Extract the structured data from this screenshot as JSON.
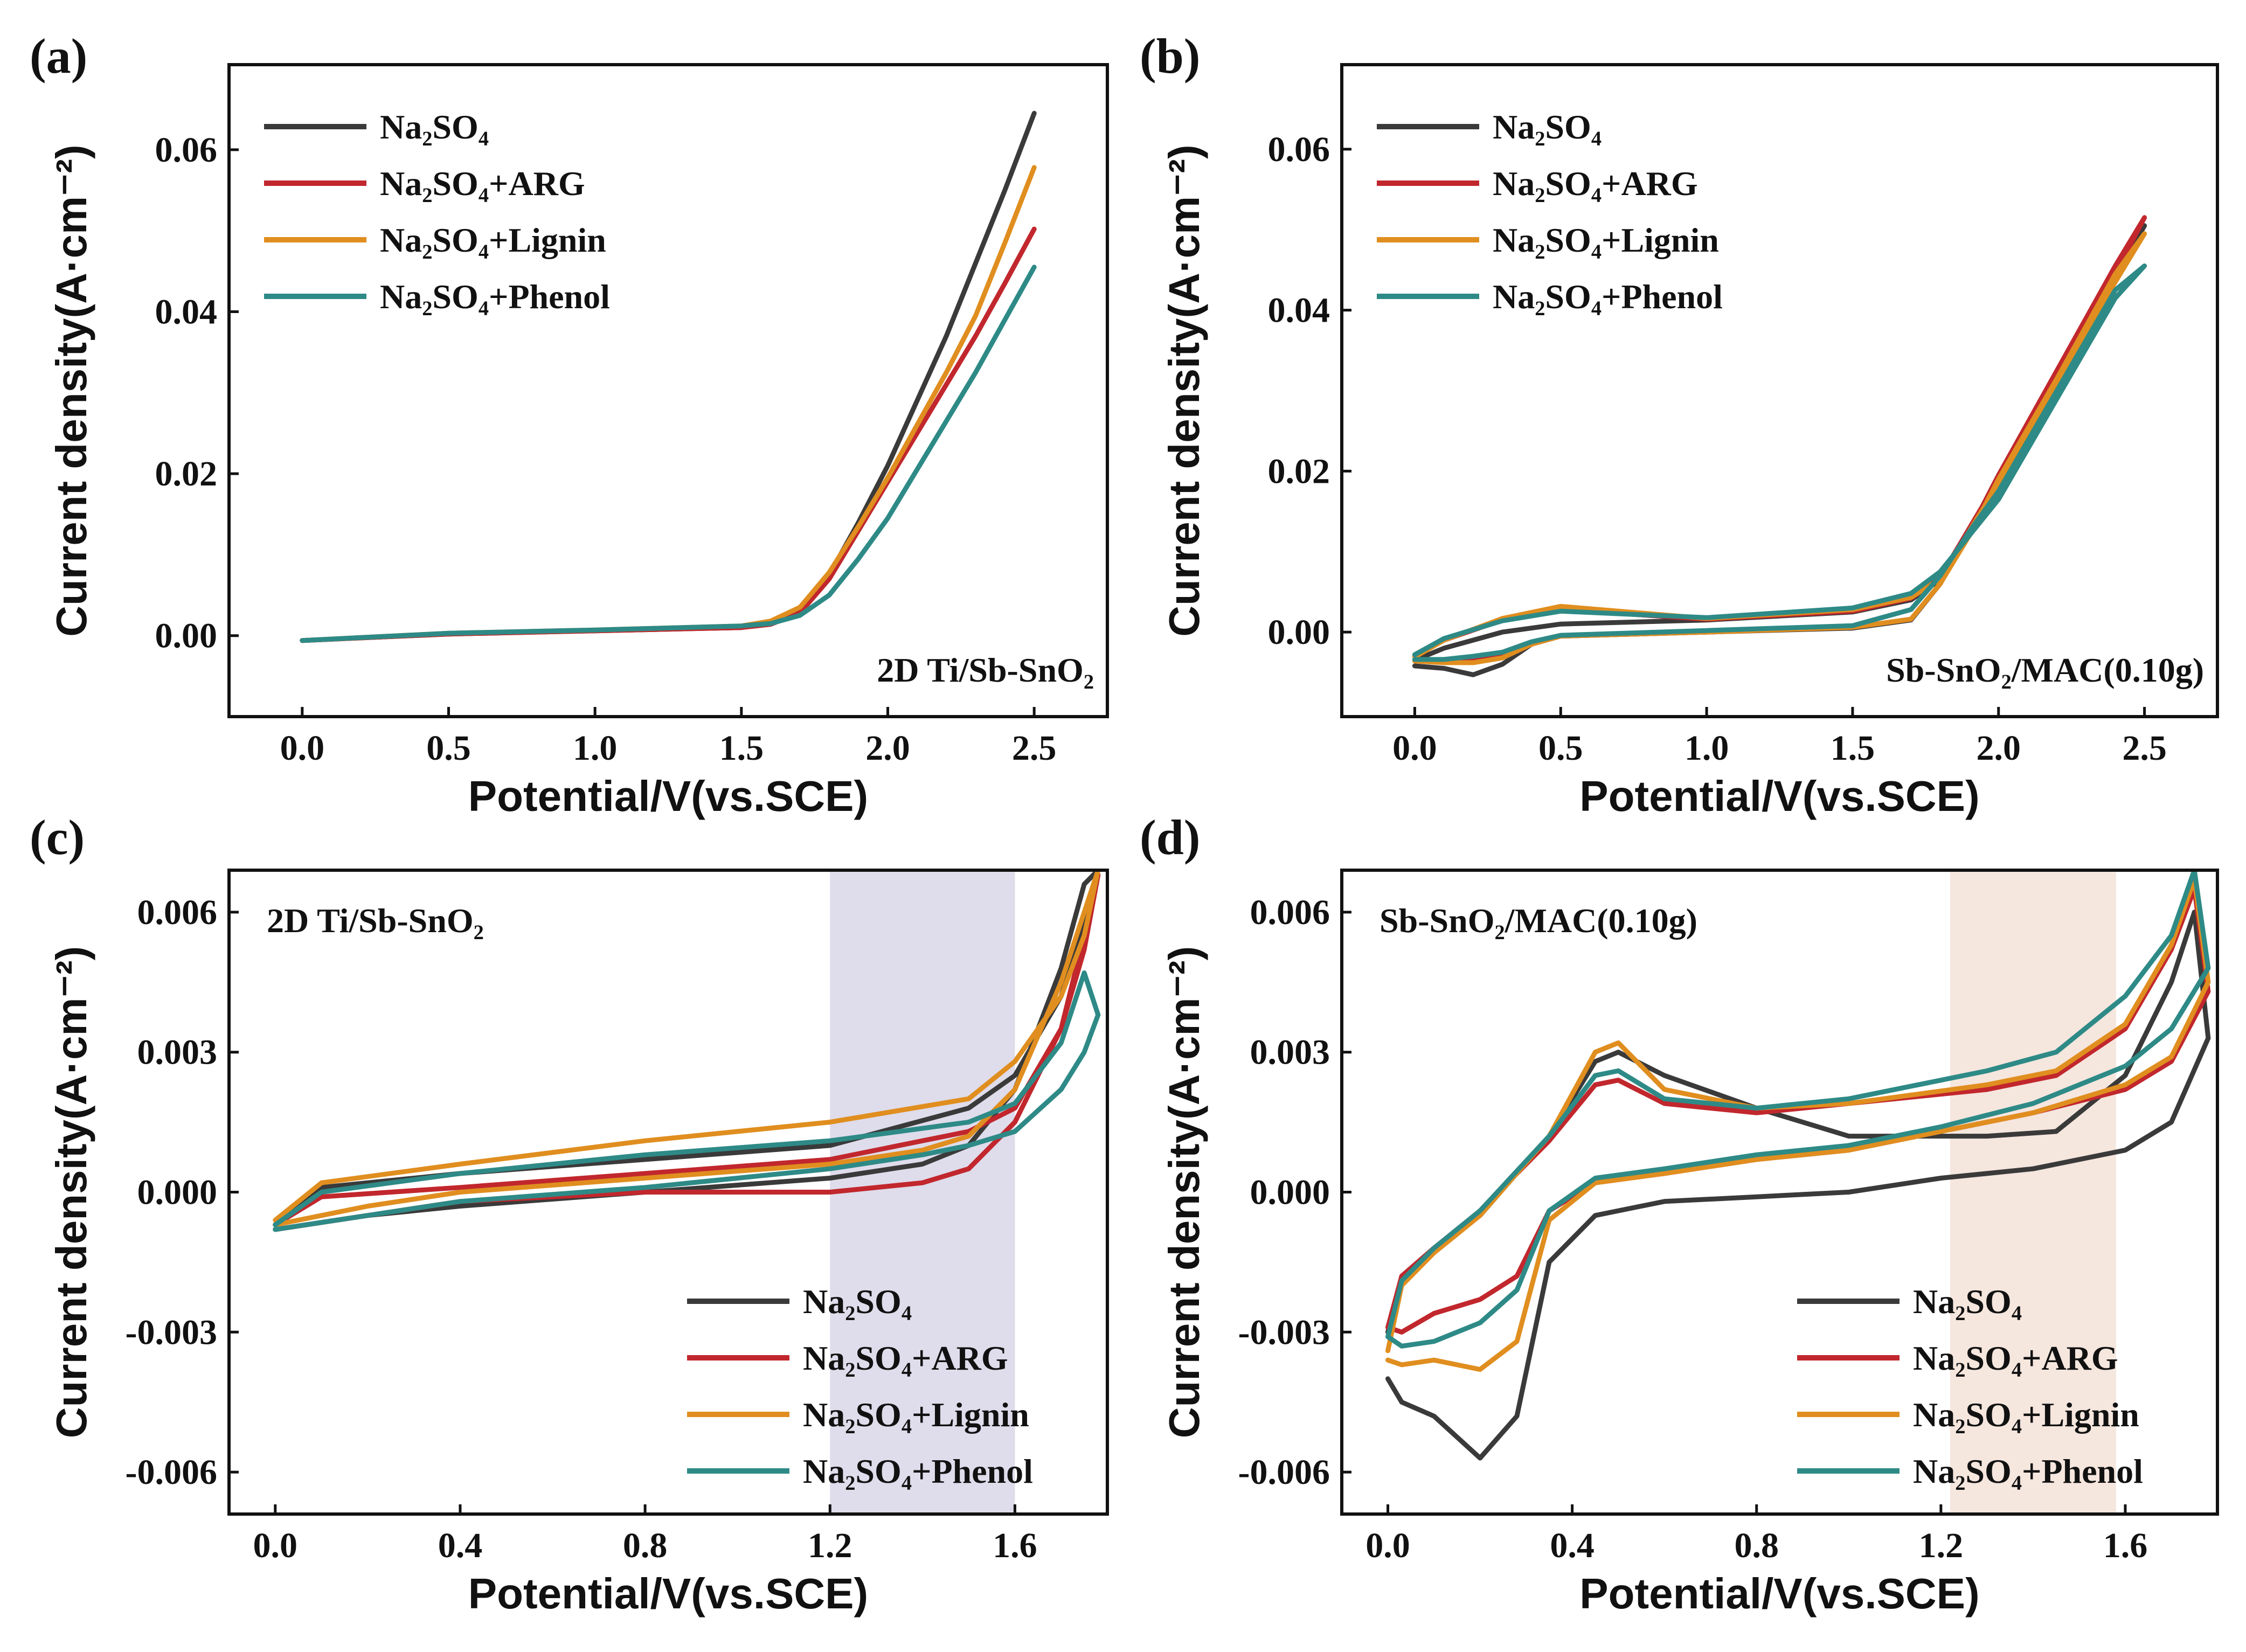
{
  "colors": {
    "Na2SO4": "#3a3a3a",
    "ARG": "#c1272d",
    "Lignin": "#e08e1f",
    "Phenol": "#2e8a86",
    "band_c": "#d9d6e8",
    "band_d": "#f3e2d8"
  },
  "legend": {
    "s1": "Na₂SO₄",
    "s2": "Na₂SO₄+ARG",
    "s3": "Na₂SO₄+Lignin",
    "s4": "Na₂SO₄+Phenol"
  },
  "chart_data": [
    {
      "id": "a",
      "panel_label": "(a)",
      "type": "line",
      "annotation": "2D Ti/Sb-SnO₂",
      "annotation_position": "bottom-right",
      "legend_position": "top-left",
      "xlabel": "Potential/V(vs.SCE)",
      "ylabel": "Current density(A·cm⁻²)",
      "xlim": [
        -0.25,
        2.75
      ],
      "ylim": [
        -0.01,
        0.0705
      ],
      "xticks": [
        0.0,
        0.5,
        1.0,
        1.5,
        2.0,
        2.5
      ],
      "xtick_labels": [
        "0.0",
        "0.5",
        "1.0",
        "1.5",
        "2.0",
        "2.5"
      ],
      "yticks": [
        0.0,
        0.02,
        0.04,
        0.06
      ],
      "ytick_labels": [
        "0.00",
        "0.02",
        "0.04",
        "0.06"
      ],
      "series": [
        {
          "name": "Na₂SO₄",
          "key": "Na2SO4",
          "x": [
            0.0,
            0.5,
            1.0,
            1.5,
            1.6,
            1.7,
            1.8,
            1.9,
            2.0,
            2.1,
            2.2,
            2.3,
            2.4,
            2.5
          ],
          "y": [
            -0.0006,
            0.0002,
            0.0006,
            0.001,
            0.0015,
            0.003,
            0.0075,
            0.014,
            0.021,
            0.029,
            0.037,
            0.046,
            0.055,
            0.0645
          ]
        },
        {
          "name": "Na₂SO₄+ARG",
          "key": "ARG",
          "x": [
            0.0,
            0.5,
            1.0,
            1.5,
            1.6,
            1.7,
            1.8,
            1.9,
            2.0,
            2.1,
            2.2,
            2.3,
            2.4,
            2.5
          ],
          "y": [
            -0.0006,
            0.0002,
            0.0006,
            0.001,
            0.0014,
            0.0028,
            0.007,
            0.013,
            0.019,
            0.025,
            0.031,
            0.037,
            0.0435,
            0.0502
          ]
        },
        {
          "name": "Na₂SO₄+Lignin",
          "key": "Lignin",
          "x": [
            0.0,
            0.5,
            1.0,
            1.5,
            1.6,
            1.7,
            1.8,
            1.9,
            2.0,
            2.1,
            2.2,
            2.3,
            2.4,
            2.5
          ],
          "y": [
            -0.0006,
            0.0003,
            0.0007,
            0.0012,
            0.0018,
            0.0035,
            0.0078,
            0.0135,
            0.0195,
            0.026,
            0.0325,
            0.0395,
            0.0485,
            0.0578
          ]
        },
        {
          "name": "Na₂SO₄+Phenol",
          "key": "Phenol",
          "x": [
            0.0,
            0.5,
            1.0,
            1.5,
            1.6,
            1.7,
            1.8,
            1.9,
            2.0,
            2.1,
            2.2,
            2.3,
            2.4,
            2.5
          ],
          "y": [
            -0.0006,
            0.0003,
            0.0007,
            0.0012,
            0.0015,
            0.0025,
            0.005,
            0.0095,
            0.0145,
            0.0205,
            0.0265,
            0.0325,
            0.039,
            0.0455
          ]
        }
      ]
    },
    {
      "id": "b",
      "panel_label": "(b)",
      "type": "line",
      "annotation": "Sb-SnO₂/MAC(0.10g)",
      "annotation_position": "bottom-right",
      "legend_position": "top-left",
      "xlabel": "Potential/V(vs.SCE)",
      "ylabel": "Current density(A·cm⁻²)",
      "xlim": [
        -0.25,
        2.75
      ],
      "ylim": [
        -0.0105,
        0.0705
      ],
      "xticks": [
        0.0,
        0.5,
        1.0,
        1.5,
        2.0,
        2.5
      ],
      "xtick_labels": [
        "0.0",
        "0.5",
        "1.0",
        "1.5",
        "2.0",
        "2.5"
      ],
      "yticks": [
        0.0,
        0.02,
        0.04,
        0.06
      ],
      "ytick_labels": [
        "0.00",
        "0.02",
        "0.04",
        "0.06"
      ],
      "series": [
        {
          "name": "Na₂SO₄",
          "key": "Na2SO4",
          "x": [
            0.0,
            0.1,
            0.2,
            0.3,
            0.4,
            0.5,
            1.0,
            1.5,
            1.7,
            1.8,
            1.9,
            2.0,
            2.2,
            2.4,
            2.5,
            2.4,
            2.2,
            2.0,
            1.8,
            1.7,
            1.5,
            1.0,
            0.5,
            0.3,
            0.1,
            0.0
          ],
          "y": [
            -0.0042,
            -0.0045,
            -0.0053,
            -0.004,
            -0.0015,
            -0.0005,
            0.0,
            0.0005,
            0.0015,
            0.006,
            0.0125,
            0.0195,
            0.032,
            0.045,
            0.0505,
            0.044,
            0.031,
            0.0185,
            0.0065,
            0.004,
            0.0025,
            0.0015,
            0.001,
            0.0,
            -0.002,
            -0.0035
          ]
        },
        {
          "name": "Na₂SO₄+ARG",
          "key": "ARG",
          "x": [
            0.0,
            0.1,
            0.2,
            0.3,
            0.4,
            0.5,
            1.0,
            1.5,
            1.7,
            1.8,
            1.9,
            2.0,
            2.2,
            2.4,
            2.5,
            2.4,
            2.2,
            2.0,
            1.8,
            1.7,
            1.5,
            1.0,
            0.5,
            0.3,
            0.1,
            0.0
          ],
          "y": [
            -0.0035,
            -0.0036,
            -0.0035,
            -0.003,
            -0.0015,
            -0.0005,
            0.0,
            0.0006,
            0.0016,
            0.006,
            0.0125,
            0.0195,
            0.0325,
            0.0455,
            0.0515,
            0.0445,
            0.0315,
            0.019,
            0.0068,
            0.0042,
            0.0026,
            0.0016,
            0.0028,
            0.0015,
            -0.001,
            -0.003
          ]
        },
        {
          "name": "Na₂SO₄+Lignin",
          "key": "Lignin",
          "x": [
            0.0,
            0.1,
            0.2,
            0.3,
            0.4,
            0.5,
            1.0,
            1.5,
            1.7,
            1.8,
            1.9,
            2.0,
            2.2,
            2.4,
            2.5,
            2.4,
            2.2,
            2.0,
            1.8,
            1.7,
            1.5,
            1.0,
            0.5,
            0.3,
            0.1,
            0.0
          ],
          "y": [
            -0.0036,
            -0.0038,
            -0.0038,
            -0.0032,
            -0.0015,
            -0.0005,
            0.0,
            0.0006,
            0.0016,
            0.006,
            0.012,
            0.019,
            0.0315,
            0.0445,
            0.0495,
            0.0435,
            0.031,
            0.0185,
            0.0066,
            0.0043,
            0.0028,
            0.0017,
            0.0032,
            0.0017,
            -0.001,
            -0.0031
          ]
        },
        {
          "name": "Na₂SO₄+Phenol",
          "key": "Phenol",
          "x": [
            0.0,
            0.1,
            0.2,
            0.3,
            0.4,
            0.5,
            1.0,
            1.5,
            1.7,
            1.8,
            1.9,
            2.0,
            2.2,
            2.4,
            2.5,
            2.4,
            2.2,
            2.0,
            1.8,
            1.7,
            1.5,
            1.0,
            0.5,
            0.3,
            0.1,
            0.0
          ],
          "y": [
            -0.0034,
            -0.0034,
            -0.003,
            -0.0025,
            -0.0012,
            -0.0004,
            0.0002,
            0.0008,
            0.0028,
            0.007,
            0.0125,
            0.0175,
            0.03,
            0.0425,
            0.0455,
            0.0415,
            0.029,
            0.0165,
            0.0075,
            0.0048,
            0.003,
            0.0018,
            0.0026,
            0.0014,
            -0.0008,
            -0.0028
          ]
        }
      ]
    },
    {
      "id": "c",
      "panel_label": "(c)",
      "type": "line",
      "annotation": "2D Ti/Sb-SnO₂",
      "annotation_position": "top-left",
      "legend_position": "bottom-right",
      "highlight_band": [
        1.2,
        1.6
      ],
      "band_key": "band_c",
      "xlabel": "Potential/V(vs.SCE)",
      "ylabel": "Current density(A·cm⁻²)",
      "xlim": [
        -0.1,
        1.8
      ],
      "ylim": [
        -0.0069,
        0.0069
      ],
      "xticks": [
        0.0,
        0.4,
        0.8,
        1.2,
        1.6
      ],
      "xtick_labels": [
        "0.0",
        "0.4",
        "0.8",
        "1.2",
        "1.6"
      ],
      "yticks": [
        -0.006,
        -0.003,
        0.0,
        0.003,
        0.006
      ],
      "ytick_labels": [
        "-0.006",
        "-0.003",
        "0.000",
        "0.003",
        "0.006"
      ],
      "series": [
        {
          "name": "Na₂SO₄",
          "key": "Na2SO4",
          "x": [
            0.0,
            0.2,
            0.4,
            0.8,
            1.2,
            1.4,
            1.5,
            1.6,
            1.7,
            1.75,
            1.78,
            1.75,
            1.7,
            1.6,
            1.5,
            1.2,
            0.8,
            0.4,
            0.1,
            0.0
          ],
          "y": [
            -0.0008,
            -0.0005,
            -0.0003,
            0.0,
            0.0003,
            0.0006,
            0.001,
            0.0022,
            0.0048,
            0.0066,
            0.0069,
            0.0058,
            0.0042,
            0.0025,
            0.0018,
            0.001,
            0.0007,
            0.0004,
            0.0001,
            -0.0007
          ]
        },
        {
          "name": "Na₂SO₄+ARG",
          "key": "ARG",
          "x": [
            0.0,
            0.2,
            0.4,
            0.8,
            1.2,
            1.4,
            1.5,
            1.6,
            1.7,
            1.75,
            1.78,
            1.75,
            1.7,
            1.6,
            1.5,
            1.2,
            0.8,
            0.4,
            0.1,
            0.0
          ],
          "y": [
            -0.0008,
            -0.0005,
            -0.0002,
            0.0,
            0.0,
            0.0002,
            0.0005,
            0.0015,
            0.0035,
            0.0055,
            0.0068,
            0.0052,
            0.0035,
            0.0018,
            0.0013,
            0.0007,
            0.0004,
            0.0001,
            -0.0001,
            -0.0007
          ]
        },
        {
          "name": "Na₂SO₄+Lignin",
          "key": "Lignin",
          "x": [
            0.0,
            0.2,
            0.4,
            0.8,
            1.2,
            1.4,
            1.5,
            1.6,
            1.7,
            1.75,
            1.78,
            1.75,
            1.7,
            1.6,
            1.5,
            1.2,
            0.8,
            0.4,
            0.1,
            0.0
          ],
          "y": [
            -0.0007,
            -0.0003,
            0.0,
            0.0003,
            0.0006,
            0.0009,
            0.0012,
            0.0022,
            0.0045,
            0.006,
            0.0069,
            0.0055,
            0.0042,
            0.0028,
            0.002,
            0.0015,
            0.0011,
            0.0006,
            0.0002,
            -0.0006
          ]
        },
        {
          "name": "Na₂SO₄+Phenol",
          "key": "Phenol",
          "x": [
            0.0,
            0.2,
            0.4,
            0.8,
            1.2,
            1.4,
            1.5,
            1.6,
            1.7,
            1.75,
            1.78,
            1.75,
            1.7,
            1.6,
            1.5,
            1.2,
            0.8,
            0.4,
            0.1,
            0.0
          ],
          "y": [
            -0.0008,
            -0.0005,
            -0.0002,
            0.0001,
            0.0005,
            0.0008,
            0.001,
            0.0013,
            0.0022,
            0.003,
            0.0038,
            0.0047,
            0.0032,
            0.0019,
            0.0015,
            0.0011,
            0.0008,
            0.0004,
            0.0,
            -0.0007
          ]
        }
      ]
    },
    {
      "id": "d",
      "panel_label": "(d)",
      "type": "line",
      "annotation": "Sb-SnO₂/MAC(0.10g)",
      "annotation_position": "top-left",
      "legend_position": "bottom-right",
      "highlight_band": [
        1.22,
        1.58
      ],
      "band_key": "band_d",
      "xlabel": "Potential/V(vs.SCE)",
      "ylabel": "Current density(A·cm⁻²)",
      "xlim": [
        -0.1,
        1.8
      ],
      "ylim": [
        -0.0069,
        0.0069
      ],
      "xticks": [
        0.0,
        0.4,
        0.8,
        1.2,
        1.6
      ],
      "xtick_labels": [
        "0.0",
        "0.4",
        "0.8",
        "1.2",
        "1.6"
      ],
      "yticks": [
        -0.006,
        -0.003,
        0.0,
        0.003,
        0.006
      ],
      "ytick_labels": [
        "-0.006",
        "-0.003",
        "0.000",
        "0.003",
        "0.006"
      ],
      "series": [
        {
          "name": "Na₂SO₄",
          "key": "Na2SO4",
          "x": [
            0.0,
            0.03,
            0.1,
            0.2,
            0.28,
            0.35,
            0.45,
            0.6,
            0.8,
            1.0,
            1.2,
            1.4,
            1.6,
            1.7,
            1.78,
            1.75,
            1.7,
            1.6,
            1.45,
            1.3,
            1.0,
            0.8,
            0.6,
            0.5,
            0.45,
            0.35,
            0.2,
            0.1,
            0.03,
            0.0
          ],
          "y": [
            -0.004,
            -0.0045,
            -0.0048,
            -0.0057,
            -0.0048,
            -0.0015,
            -0.0005,
            -0.0002,
            -0.0001,
            0.0,
            0.0003,
            0.0005,
            0.0009,
            0.0015,
            0.0033,
            0.006,
            0.0045,
            0.0025,
            0.0013,
            0.0012,
            0.0012,
            0.0018,
            0.0025,
            0.003,
            0.0028,
            0.0012,
            -0.0005,
            -0.0012,
            -0.0018,
            -0.003
          ]
        },
        {
          "name": "Na₂SO₄+ARG",
          "key": "ARG",
          "x": [
            0.0,
            0.03,
            0.1,
            0.2,
            0.28,
            0.35,
            0.45,
            0.6,
            0.8,
            1.0,
            1.2,
            1.4,
            1.6,
            1.7,
            1.78,
            1.75,
            1.7,
            1.6,
            1.45,
            1.3,
            1.0,
            0.8,
            0.6,
            0.5,
            0.45,
            0.35,
            0.2,
            0.1,
            0.03,
            0.0
          ],
          "y": [
            -0.0029,
            -0.003,
            -0.0026,
            -0.0023,
            -0.0018,
            -0.0004,
            0.0002,
            0.0004,
            0.0007,
            0.0009,
            0.0013,
            0.0017,
            0.0022,
            0.0028,
            0.0043,
            0.0065,
            0.0052,
            0.0035,
            0.0025,
            0.0022,
            0.0019,
            0.0017,
            0.0019,
            0.0024,
            0.0023,
            0.0011,
            -0.0004,
            -0.0012,
            -0.0018,
            -0.0029
          ]
        },
        {
          "name": "Na₂SO₄+Lignin",
          "key": "Lignin",
          "x": [
            0.0,
            0.03,
            0.1,
            0.2,
            0.28,
            0.35,
            0.45,
            0.6,
            0.8,
            1.0,
            1.2,
            1.4,
            1.6,
            1.7,
            1.78,
            1.75,
            1.7,
            1.6,
            1.45,
            1.3,
            1.0,
            0.8,
            0.6,
            0.5,
            0.45,
            0.35,
            0.2,
            0.1,
            0.03,
            0.0
          ],
          "y": [
            -0.0036,
            -0.0037,
            -0.0036,
            -0.0038,
            -0.0032,
            -0.0006,
            0.0002,
            0.0004,
            0.0007,
            0.0009,
            0.0013,
            0.0017,
            0.0023,
            0.0029,
            0.0045,
            0.0067,
            0.0053,
            0.0036,
            0.0026,
            0.0023,
            0.0019,
            0.0018,
            0.0022,
            0.0032,
            0.003,
            0.0012,
            -0.0005,
            -0.0013,
            -0.002,
            -0.0034
          ]
        },
        {
          "name": "Na₂SO₄+Phenol",
          "key": "Phenol",
          "x": [
            0.0,
            0.03,
            0.1,
            0.2,
            0.28,
            0.35,
            0.45,
            0.6,
            0.8,
            1.0,
            1.2,
            1.4,
            1.6,
            1.7,
            1.78,
            1.75,
            1.7,
            1.6,
            1.45,
            1.3,
            1.0,
            0.8,
            0.6,
            0.5,
            0.45,
            0.35,
            0.2,
            0.1,
            0.03,
            0.0
          ],
          "y": [
            -0.0031,
            -0.0033,
            -0.0032,
            -0.0028,
            -0.0021,
            -0.0004,
            0.0003,
            0.0005,
            0.0008,
            0.001,
            0.0014,
            0.0019,
            0.0027,
            0.0035,
            0.0048,
            0.0069,
            0.0055,
            0.0042,
            0.003,
            0.0026,
            0.002,
            0.0018,
            0.002,
            0.0026,
            0.0025,
            0.0012,
            -0.0004,
            -0.0012,
            -0.0019,
            -0.0031
          ]
        }
      ]
    }
  ]
}
